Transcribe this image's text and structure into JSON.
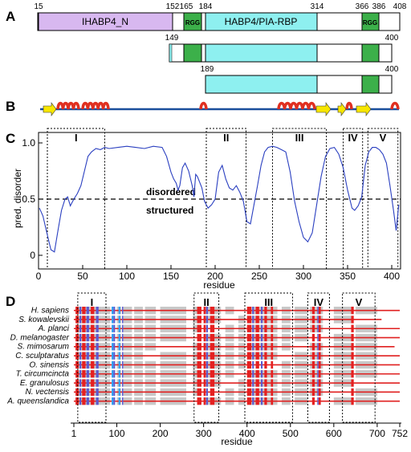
{
  "panelA": {
    "letter": "A",
    "tick_labels": [
      "15",
      "152",
      "165",
      "184",
      "314",
      "366",
      "386",
      "408",
      "149",
      "400",
      "189",
      "400"
    ],
    "domain_labels": {
      "ihabp4": "IHABP4_N",
      "rgg": "RGG",
      "habp4": "HABP4/PIA-RBP"
    },
    "colors": {
      "ihabp4": "#d8b8f0",
      "rgg": "#3cb04a",
      "habp4": "#8ef0f0"
    }
  },
  "panelB": {
    "letter": "B",
    "colors": {
      "line": "#1a4f9c",
      "helix": "#e03020",
      "strand": "#f7e600"
    }
  },
  "panelC": {
    "letter": "C",
    "ylabel": "pred. disorder",
    "xlabel": "residue",
    "yticks": [
      "0",
      "0.5",
      "1.0"
    ],
    "xticks": [
      "0",
      "50",
      "100",
      "150",
      "200",
      "250",
      "300",
      "350",
      "400"
    ],
    "threshold_labels": {
      "above": "disordered",
      "below": "structured"
    },
    "region_labels": [
      "I",
      "II",
      "III",
      "IV",
      "V"
    ]
  },
  "panelD": {
    "letter": "D",
    "xlabel": "residue",
    "xticks": [
      "1",
      "100",
      "200",
      "300",
      "400",
      "500",
      "600",
      "700",
      "752"
    ],
    "region_labels": [
      "I",
      "II",
      "III",
      "IV",
      "V"
    ],
    "species": [
      "H. sapiens",
      "S. kowalevskii",
      "A. planci",
      "D. melanogaster",
      "S. mimosarum",
      "C. sculptaratus",
      "O. sinensis",
      "T. circumcincta",
      "E. granulosus",
      "N. vectensis",
      "A. queenslandica"
    ]
  },
  "chart_data": {
    "type": "line",
    "xlabel": "residue",
    "ylabel": "pred. disorder",
    "xlim": [
      0,
      410
    ],
    "ylim": [
      0,
      1.0
    ],
    "threshold": 0.5,
    "series": [
      {
        "x": [
          1,
          5,
          10,
          14,
          18,
          22,
          26,
          30,
          33,
          36,
          40,
          44,
          48,
          52,
          56,
          60,
          65,
          70,
          75,
          80,
          90,
          100,
          110,
          120,
          130,
          140,
          145,
          150,
          153,
          156,
          158,
          160,
          163,
          166,
          170,
          174,
          176,
          178,
          180,
          185,
          188,
          192,
          196,
          200,
          204,
          208,
          212,
          216,
          220,
          224,
          228,
          232,
          236,
          240,
          244,
          248,
          252,
          256,
          260,
          265,
          270,
          275,
          280,
          285,
          290,
          295,
          300,
          305,
          310,
          315,
          320,
          325,
          330,
          335,
          340,
          345,
          350,
          355,
          358,
          362,
          366,
          370,
          374,
          378,
          382,
          386,
          390,
          394,
          398,
          402,
          405,
          408
        ],
        "y": [
          0.42,
          0.35,
          0.18,
          0.05,
          0.03,
          0.22,
          0.4,
          0.5,
          0.52,
          0.44,
          0.5,
          0.55,
          0.62,
          0.75,
          0.88,
          0.92,
          0.95,
          0.94,
          0.96,
          0.95,
          0.96,
          0.97,
          0.96,
          0.95,
          0.97,
          0.96,
          0.88,
          0.74,
          0.68,
          0.64,
          0.58,
          0.62,
          0.78,
          0.82,
          0.75,
          0.62,
          0.52,
          0.72,
          0.7,
          0.6,
          0.48,
          0.42,
          0.45,
          0.5,
          0.74,
          0.8,
          0.68,
          0.6,
          0.58,
          0.62,
          0.56,
          0.48,
          0.3,
          0.28,
          0.45,
          0.62,
          0.8,
          0.92,
          0.96,
          0.97,
          0.96,
          0.94,
          0.92,
          0.74,
          0.48,
          0.3,
          0.16,
          0.12,
          0.2,
          0.45,
          0.7,
          0.88,
          0.95,
          0.96,
          0.9,
          0.78,
          0.58,
          0.42,
          0.4,
          0.44,
          0.52,
          0.8,
          0.92,
          0.96,
          0.96,
          0.94,
          0.9,
          0.82,
          0.62,
          0.4,
          0.22,
          0.45
        ]
      }
    ]
  }
}
